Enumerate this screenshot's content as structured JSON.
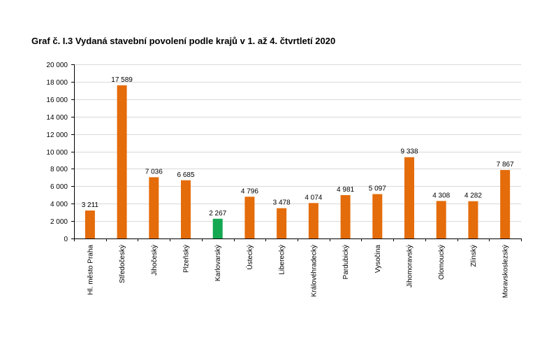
{
  "title": "Graf č. I.3 Vydaná stavební povolení podle krajů v 1. až 4. čtvrtletí 2020",
  "colors": {
    "bar": "#E46C0A",
    "highlight": "#13A851",
    "grid": "#D9D9D9",
    "axis": "#000000"
  },
  "chart_data": {
    "type": "bar",
    "title": "Graf č. I.3 Vydaná stavební povolení podle krajů v 1. až 4. čtvrtletí 2020",
    "xlabel": "",
    "ylabel": "",
    "ylim": [
      0,
      20000
    ],
    "yticks": [
      0,
      2000,
      4000,
      6000,
      8000,
      10000,
      12000,
      14000,
      16000,
      18000,
      20000
    ],
    "ytick_labels": [
      "0",
      "2 000",
      "4 000",
      "6 000",
      "8 000",
      "10 000",
      "12 000",
      "14 000",
      "16 000",
      "18 000",
      "20 000"
    ],
    "categories": [
      "Hl. město Praha",
      "Středočeský",
      "Jihočeský",
      "Plzeňský",
      "Karlovarský",
      "Ústecký",
      "Liberecký",
      "Královéhradecký",
      "Pardubický",
      "Vysočina",
      "Jihomoravský",
      "Olomoucký",
      "Zlínský",
      "Moravskoslezský"
    ],
    "values": [
      3211,
      17589,
      7036,
      6685,
      2267,
      4796,
      3478,
      4074,
      4981,
      5097,
      9338,
      4308,
      4282,
      7867
    ],
    "value_labels": [
      "3 211",
      "17 589",
      "7 036",
      "6 685",
      "2 267",
      "4 796",
      "3 478",
      "4 074",
      "4 981",
      "5 097",
      "9 338",
      "4 308",
      "4 282",
      "7 867"
    ],
    "highlight_index": 4,
    "grid": true,
    "legend": "none"
  }
}
